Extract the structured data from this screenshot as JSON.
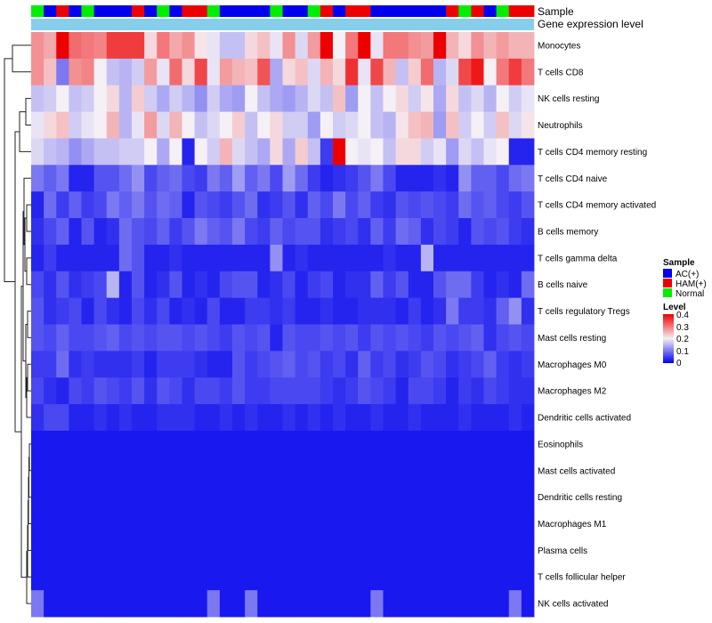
{
  "chart_data": {
    "type": "heatmap",
    "title": "",
    "n_columns": 40,
    "rows": [
      "Monocytes",
      "T cells CD8",
      "NK cells resting",
      "Neutrophils",
      "T cells CD4 memory resting",
      "T cells CD4 naive",
      "T cells CD4 memory activated",
      "B cells memory",
      "T cells gamma delta",
      "B cells naive",
      "T cells regulatory  Tregs",
      "Mast cells resting",
      "Macrophages M0",
      "Macrophages M2",
      "Dendritic cells activated",
      "Eosinophils",
      "Mast cells activated",
      "Dendritic cells resting",
      "Macrophages M1",
      "Plasma cells",
      "T cells follicular helper",
      "NK cells activated"
    ],
    "annotation_tracks": [
      {
        "name": "Sample",
        "key": "sample"
      },
      {
        "name": "Gene expression level",
        "key": "gene_expression"
      }
    ],
    "sample_groups": {
      "AC(+)": "#0000ee",
      "HAM(+)": "#ee0000",
      "Normal": "#00ee00"
    },
    "column_samples": [
      "Normal",
      "AC(+)",
      "HAM(+)",
      "AC(+)",
      "Normal",
      "AC(+)",
      "AC(+)",
      "AC(+)",
      "HAM(+)",
      "AC(+)",
      "Normal",
      "AC(+)",
      "HAM(+)",
      "HAM(+)",
      "Normal",
      "AC(+)",
      "AC(+)",
      "AC(+)",
      "AC(+)",
      "Normal",
      "AC(+)",
      "AC(+)",
      "Normal",
      "HAM(+)",
      "AC(+)",
      "HAM(+)",
      "HAM(+)",
      "AC(+)",
      "AC(+)",
      "AC(+)",
      "AC(+)",
      "AC(+)",
      "AC(+)",
      "HAM(+)",
      "Normal",
      "HAM(+)",
      "AC(+)",
      "Normal",
      "HAM(+)",
      "HAM(+)"
    ],
    "legends": {
      "sample": {
        "title": "Sample",
        "entries": [
          "AC(+)",
          "HAM(+)",
          "Normal"
        ]
      },
      "level": {
        "title": "Level",
        "range": [
          0,
          0.4
        ],
        "ticks": [
          "0.4",
          "0.3",
          "0.2",
          "0.1",
          "0"
        ]
      }
    },
    "values": [
      [
        0.28,
        0.26,
        0.4,
        0.31,
        0.3,
        0.29,
        0.35,
        0.35,
        0.35,
        0.22,
        0.3,
        0.26,
        0.28,
        0.21,
        0.19,
        0.16,
        0.16,
        0.22,
        0.24,
        0.19,
        0.28,
        0.18,
        0.27,
        0.4,
        0.2,
        0.3,
        0.4,
        0.19,
        0.3,
        0.3,
        0.28,
        0.27,
        0.4,
        0.25,
        0.22,
        0.28,
        0.25,
        0.27,
        0.25,
        0.25
      ],
      [
        0.28,
        0.24,
        0.1,
        0.28,
        0.29,
        0.2,
        0.16,
        0.15,
        0.17,
        0.27,
        0.19,
        0.31,
        0.22,
        0.34,
        0.19,
        0.27,
        0.25,
        0.24,
        0.33,
        0.14,
        0.22,
        0.24,
        0.18,
        0.25,
        0.22,
        0.36,
        0.19,
        0.34,
        0.25,
        0.16,
        0.23,
        0.31,
        0.15,
        0.18,
        0.34,
        0.38,
        0.2,
        0.3,
        0.35,
        0.3
      ],
      [
        0.16,
        0.17,
        0.2,
        0.16,
        0.17,
        0.2,
        0.22,
        0.15,
        0.23,
        0.17,
        0.14,
        0.17,
        0.15,
        0.12,
        0.17,
        0.14,
        0.13,
        0.2,
        0.16,
        0.14,
        0.13,
        0.15,
        0.18,
        0.16,
        0.24,
        0.13,
        0.2,
        0.16,
        0.2,
        0.22,
        0.17,
        0.21,
        0.14,
        0.22,
        0.16,
        0.18,
        0.15,
        0.2,
        0.17,
        0.19
      ],
      [
        0.19,
        0.22,
        0.24,
        0.17,
        0.19,
        0.2,
        0.25,
        0.15,
        0.19,
        0.27,
        0.18,
        0.25,
        0.2,
        0.16,
        0.18,
        0.2,
        0.23,
        0.16,
        0.2,
        0.22,
        0.17,
        0.17,
        0.13,
        0.2,
        0.17,
        0.18,
        0.2,
        0.16,
        0.15,
        0.21,
        0.24,
        0.25,
        0.13,
        0.24,
        0.17,
        0.2,
        0.17,
        0.24,
        0.18,
        0.21
      ],
      [
        0.18,
        0.16,
        0.15,
        0.12,
        0.14,
        0.16,
        0.16,
        0.17,
        0.17,
        0.2,
        0.14,
        0.2,
        0.03,
        0.2,
        0.17,
        0.25,
        0.18,
        0.16,
        0.14,
        0.22,
        0.14,
        0.23,
        0.16,
        0.05,
        0.4,
        0.2,
        0.19,
        0.2,
        0.16,
        0.22,
        0.22,
        0.17,
        0.19,
        0.13,
        0.18,
        0.16,
        0.19,
        0.2,
        0.03,
        0.03
      ],
      [
        0.1,
        0.08,
        0.1,
        0.03,
        0.03,
        0.07,
        0.07,
        0.09,
        0.12,
        0.06,
        0.08,
        0.09,
        0.06,
        0.05,
        0.1,
        0.08,
        0.13,
        0.08,
        0.1,
        0.06,
        0.13,
        0.09,
        0.05,
        0.03,
        0.04,
        0.05,
        0.07,
        0.1,
        0.06,
        0.03,
        0.03,
        0.03,
        0.04,
        0.03,
        0.12,
        0.08,
        0.08,
        0.06,
        0.09,
        0.1
      ],
      [
        0.03,
        0.09,
        0.05,
        0.08,
        0.05,
        0.06,
        0.1,
        0.08,
        0.1,
        0.07,
        0.09,
        0.08,
        0.03,
        0.07,
        0.06,
        0.05,
        0.07,
        0.09,
        0.04,
        0.05,
        0.07,
        0.04,
        0.08,
        0.06,
        0.1,
        0.06,
        0.08,
        0.05,
        0.04,
        0.07,
        0.06,
        0.07,
        0.06,
        0.05,
        0.09,
        0.07,
        0.08,
        0.06,
        0.05,
        0.07
      ],
      [
        0.04,
        0.06,
        0.08,
        0.03,
        0.07,
        0.03,
        0.04,
        0.09,
        0.07,
        0.06,
        0.08,
        0.05,
        0.07,
        0.1,
        0.08,
        0.07,
        0.1,
        0.06,
        0.05,
        0.08,
        0.06,
        0.07,
        0.07,
        0.04,
        0.05,
        0.06,
        0.04,
        0.08,
        0.05,
        0.09,
        0.08,
        0.04,
        0.06,
        0.05,
        0.03,
        0.07,
        0.06,
        0.07,
        0.05,
        0.04
      ],
      [
        0.03,
        0.05,
        0.03,
        0.03,
        0.03,
        0.03,
        0.03,
        0.09,
        0.07,
        0.03,
        0.03,
        0.04,
        0.03,
        0.03,
        0.03,
        0.03,
        0.03,
        0.03,
        0.03,
        0.12,
        0.03,
        0.04,
        0.03,
        0.03,
        0.03,
        0.03,
        0.03,
        0.03,
        0.04,
        0.03,
        0.03,
        0.15,
        0.03,
        0.03,
        0.03,
        0.03,
        0.03,
        0.03,
        0.03,
        0.03
      ],
      [
        0.06,
        0.04,
        0.07,
        0.04,
        0.05,
        0.06,
        0.15,
        0.03,
        0.07,
        0.03,
        0.04,
        0.07,
        0.03,
        0.04,
        0.03,
        0.06,
        0.07,
        0.07,
        0.03,
        0.04,
        0.06,
        0.03,
        0.05,
        0.06,
        0.03,
        0.04,
        0.04,
        0.08,
        0.05,
        0.07,
        0.03,
        0.03,
        0.07,
        0.09,
        0.09,
        0.05,
        0.03,
        0.04,
        0.03,
        0.09
      ],
      [
        0.07,
        0.04,
        0.05,
        0.06,
        0.03,
        0.06,
        0.04,
        0.03,
        0.06,
        0.04,
        0.06,
        0.03,
        0.04,
        0.03,
        0.06,
        0.03,
        0.03,
        0.05,
        0.05,
        0.04,
        0.05,
        0.03,
        0.03,
        0.04,
        0.03,
        0.03,
        0.04,
        0.04,
        0.04,
        0.03,
        0.05,
        0.03,
        0.04,
        0.1,
        0.05,
        0.05,
        0.04,
        0.08,
        0.12,
        0.04
      ],
      [
        0.07,
        0.06,
        0.08,
        0.06,
        0.06,
        0.07,
        0.08,
        0.06,
        0.07,
        0.06,
        0.07,
        0.07,
        0.06,
        0.07,
        0.06,
        0.05,
        0.07,
        0.06,
        0.07,
        0.03,
        0.07,
        0.06,
        0.06,
        0.07,
        0.06,
        0.07,
        0.05,
        0.07,
        0.06,
        0.07,
        0.06,
        0.05,
        0.07,
        0.06,
        0.07,
        0.08,
        0.04,
        0.06,
        0.07,
        0.06
      ],
      [
        0.05,
        0.05,
        0.09,
        0.04,
        0.05,
        0.04,
        0.04,
        0.04,
        0.05,
        0.03,
        0.05,
        0.05,
        0.05,
        0.04,
        0.03,
        0.03,
        0.07,
        0.05,
        0.06,
        0.07,
        0.08,
        0.06,
        0.07,
        0.05,
        0.06,
        0.04,
        0.08,
        0.05,
        0.06,
        0.04,
        0.05,
        0.07,
        0.06,
        0.04,
        0.05,
        0.06,
        0.08,
        0.05,
        0.04,
        0.05
      ],
      [
        0.06,
        0.04,
        0.03,
        0.06,
        0.05,
        0.07,
        0.06,
        0.05,
        0.07,
        0.04,
        0.07,
        0.06,
        0.04,
        0.06,
        0.06,
        0.05,
        0.07,
        0.05,
        0.05,
        0.06,
        0.06,
        0.06,
        0.06,
        0.05,
        0.04,
        0.05,
        0.07,
        0.06,
        0.05,
        0.03,
        0.06,
        0.06,
        0.05,
        0.03,
        0.05,
        0.04,
        0.06,
        0.05,
        0.04,
        0.04
      ],
      [
        0.04,
        0.06,
        0.06,
        0.03,
        0.03,
        0.04,
        0.03,
        0.04,
        0.03,
        0.03,
        0.04,
        0.04,
        0.04,
        0.03,
        0.03,
        0.04,
        0.03,
        0.04,
        0.03,
        0.03,
        0.04,
        0.03,
        0.04,
        0.03,
        0.04,
        0.03,
        0.03,
        0.04,
        0.03,
        0.03,
        0.04,
        0.03,
        0.03,
        0.03,
        0.04,
        0.03,
        0.03,
        0.03,
        0.04,
        0.03
      ],
      [
        0.02,
        0.02,
        0.02,
        0.02,
        0.02,
        0.02,
        0.02,
        0.02,
        0.02,
        0.02,
        0.02,
        0.02,
        0.02,
        0.02,
        0.02,
        0.02,
        0.02,
        0.02,
        0.02,
        0.02,
        0.02,
        0.02,
        0.02,
        0.02,
        0.02,
        0.02,
        0.02,
        0.02,
        0.02,
        0.02,
        0.02,
        0.02,
        0.02,
        0.02,
        0.02,
        0.02,
        0.02,
        0.02,
        0.02,
        0.02
      ],
      [
        0.02,
        0.02,
        0.02,
        0.02,
        0.02,
        0.02,
        0.02,
        0.02,
        0.02,
        0.02,
        0.02,
        0.02,
        0.02,
        0.02,
        0.02,
        0.02,
        0.02,
        0.02,
        0.02,
        0.02,
        0.02,
        0.02,
        0.02,
        0.02,
        0.02,
        0.02,
        0.02,
        0.02,
        0.02,
        0.02,
        0.02,
        0.02,
        0.02,
        0.02,
        0.02,
        0.02,
        0.02,
        0.02,
        0.02,
        0.02
      ],
      [
        0.02,
        0.02,
        0.02,
        0.02,
        0.02,
        0.02,
        0.02,
        0.02,
        0.02,
        0.02,
        0.02,
        0.02,
        0.02,
        0.02,
        0.02,
        0.02,
        0.02,
        0.02,
        0.02,
        0.02,
        0.02,
        0.02,
        0.02,
        0.02,
        0.02,
        0.02,
        0.02,
        0.02,
        0.02,
        0.02,
        0.02,
        0.02,
        0.02,
        0.02,
        0.02,
        0.02,
        0.02,
        0.02,
        0.02,
        0.02
      ],
      [
        0.02,
        0.02,
        0.02,
        0.02,
        0.02,
        0.02,
        0.02,
        0.02,
        0.02,
        0.02,
        0.02,
        0.02,
        0.02,
        0.02,
        0.02,
        0.02,
        0.02,
        0.02,
        0.02,
        0.02,
        0.02,
        0.02,
        0.02,
        0.02,
        0.02,
        0.02,
        0.02,
        0.02,
        0.02,
        0.02,
        0.02,
        0.02,
        0.02,
        0.02,
        0.02,
        0.02,
        0.02,
        0.02,
        0.02,
        0.02
      ],
      [
        0.02,
        0.02,
        0.02,
        0.02,
        0.02,
        0.02,
        0.02,
        0.02,
        0.02,
        0.02,
        0.02,
        0.02,
        0.02,
        0.02,
        0.02,
        0.02,
        0.02,
        0.02,
        0.02,
        0.02,
        0.02,
        0.02,
        0.02,
        0.02,
        0.02,
        0.02,
        0.02,
        0.02,
        0.02,
        0.02,
        0.02,
        0.02,
        0.02,
        0.02,
        0.02,
        0.02,
        0.02,
        0.02,
        0.02,
        0.02
      ],
      [
        0.02,
        0.02,
        0.02,
        0.02,
        0.02,
        0.02,
        0.02,
        0.02,
        0.02,
        0.02,
        0.02,
        0.02,
        0.02,
        0.02,
        0.02,
        0.02,
        0.02,
        0.02,
        0.02,
        0.02,
        0.02,
        0.02,
        0.02,
        0.02,
        0.02,
        0.02,
        0.02,
        0.02,
        0.02,
        0.02,
        0.02,
        0.02,
        0.02,
        0.02,
        0.02,
        0.02,
        0.02,
        0.02,
        0.02,
        0.02
      ],
      [
        0.1,
        0.02,
        0.02,
        0.02,
        0.02,
        0.02,
        0.02,
        0.02,
        0.02,
        0.02,
        0.02,
        0.02,
        0.02,
        0.02,
        0.1,
        0.02,
        0.02,
        0.1,
        0.02,
        0.02,
        0.02,
        0.02,
        0.02,
        0.02,
        0.02,
        0.02,
        0.02,
        0.1,
        0.02,
        0.02,
        0.02,
        0.02,
        0.02,
        0.02,
        0.02,
        0.02,
        0.02,
        0.02,
        0.1,
        0.02
      ]
    ]
  }
}
